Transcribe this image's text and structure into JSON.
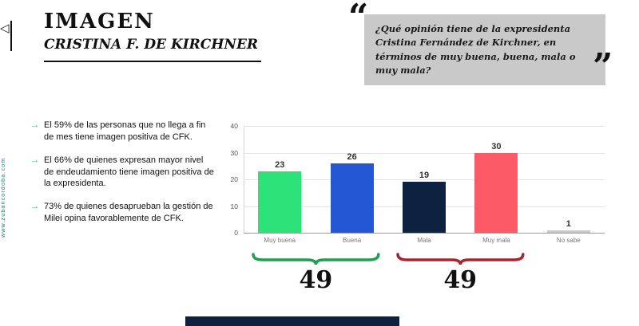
{
  "icons": {
    "play_triangle": "◁",
    "bullet_arrow": "→",
    "quote_open": "“",
    "quote_close": "”"
  },
  "sidebar": {
    "url": "www.zubancordoba.com"
  },
  "header": {
    "title": "IMAGEN",
    "subtitle": "CRISTINA F. DE KIRCHNER"
  },
  "quote": {
    "text": "¿Qué opinión tiene de la expresidenta Cristina Fernández de Kirchner, en términos de muy buena, buena, mala o muy mala?"
  },
  "bullets": [
    "El 59% de las personas que no llega a fin de mes tiene imagen positiva de CFK.",
    "El 66% de quienes expresan mayor nivel de endeudamiento tiene imagen positiva de la expresidenta.",
    "73% de quienes desaprueban la gestión de Milei opina favorablemente de CFK."
  ],
  "chart_data": {
    "type": "bar",
    "title": "",
    "categories": [
      "Muy buena",
      "Buena",
      "Mala",
      "Muy mala",
      "No sabe"
    ],
    "values": [
      23,
      26,
      19,
      30,
      1
    ],
    "bar_colors": [
      "#2ee27a",
      "#2357d4",
      "#0d2240",
      "#fc5a66",
      "#c9c9c9"
    ],
    "ylim": [
      0,
      40
    ],
    "yticks": [
      0,
      10,
      20,
      30,
      40
    ],
    "grid": true,
    "legend": false,
    "groups": [
      {
        "label": "49",
        "from": 0,
        "to": 1,
        "brace_color": "#1d9e50"
      },
      {
        "label": "49",
        "from": 2,
        "to": 3,
        "brace_color": "#a8232d"
      }
    ]
  },
  "footer": {
    "bar_color": "#0d2240"
  }
}
